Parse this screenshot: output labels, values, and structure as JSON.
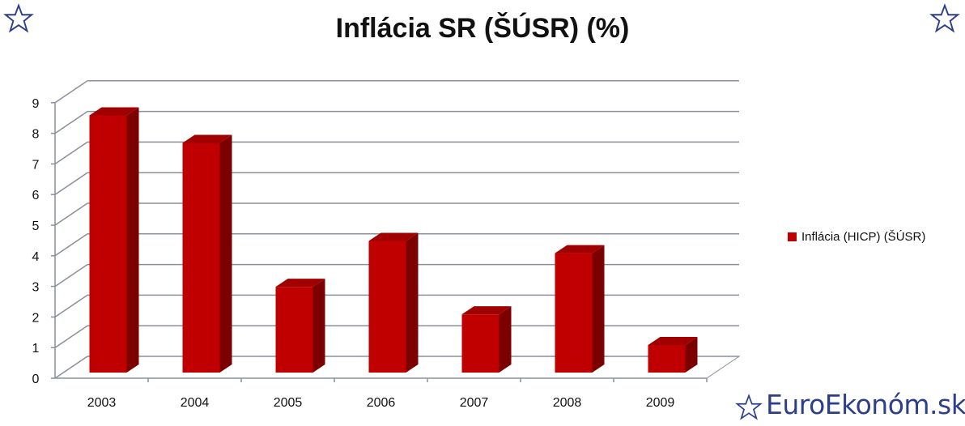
{
  "chart_data": {
    "type": "bar",
    "title": "Inflácia SR (ŠÚSR) (%)",
    "categories": [
      "2003",
      "2004",
      "2005",
      "2006",
      "2007",
      "2008",
      "2009"
    ],
    "series": [
      {
        "name": "Inflácia (HICP) (ŠÚSR)",
        "values": [
          8.4,
          7.5,
          2.8,
          4.3,
          1.9,
          3.9,
          0.9
        ]
      }
    ],
    "y_ticks": [
      "0",
      "1",
      "2",
      "3",
      "4",
      "5",
      "6",
      "7",
      "8",
      "9"
    ],
    "ylim": [
      0,
      9
    ],
    "grid": true,
    "legend_position": "right",
    "bar_color": "#c00000"
  },
  "branding": {
    "text": "EuroEkonóm.sk",
    "color": "#2c3e8c"
  },
  "decor": {
    "star_icon": "star-outline-icon"
  }
}
